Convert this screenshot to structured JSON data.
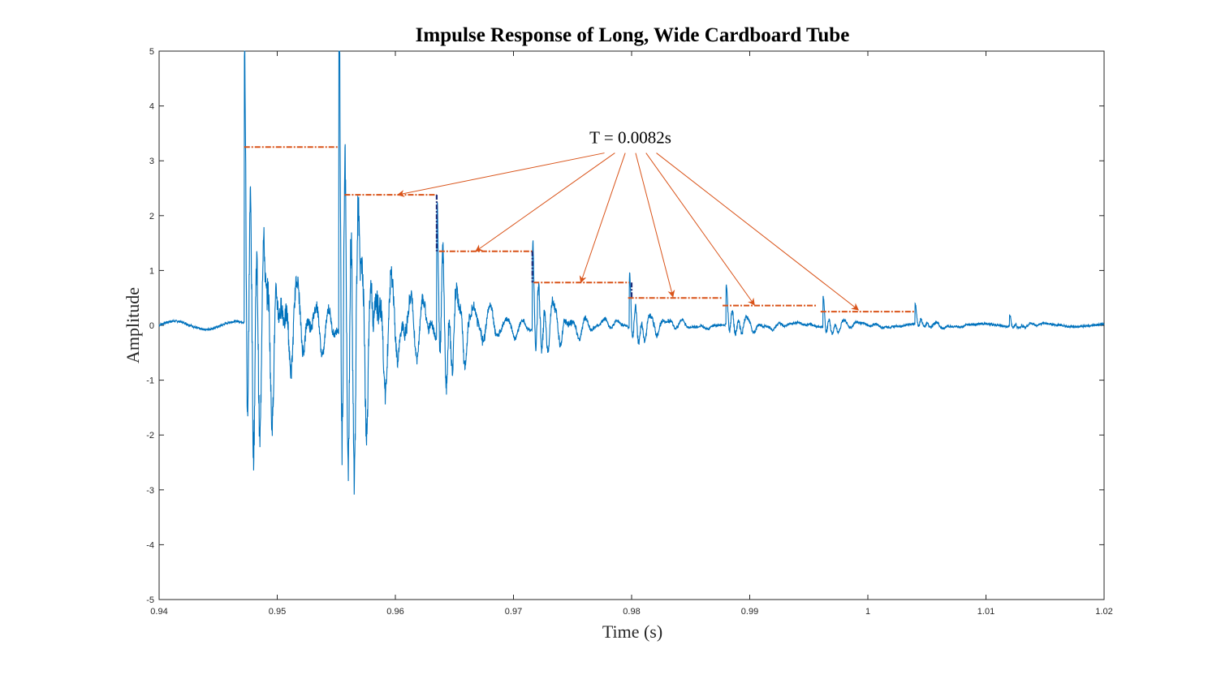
{
  "chart_data": {
    "type": "line",
    "title": "Impulse Response of Long, Wide Cardboard Tube",
    "xlabel": "Time (s)",
    "ylabel": "Amplitude",
    "xlim": [
      0.94,
      1.02
    ],
    "ylim": [
      -5,
      5
    ],
    "x_ticks": [
      0.94,
      0.95,
      0.96,
      0.97,
      0.98,
      0.99,
      1,
      1.01,
      1.02
    ],
    "x_tick_labels": [
      "0.94",
      "0.95",
      "0.96",
      "0.97",
      "0.98",
      "0.99",
      "1",
      "1.01",
      "1.02"
    ],
    "y_ticks": [
      -5,
      -4,
      -3,
      -2,
      -1,
      0,
      1,
      2,
      3,
      4,
      5
    ],
    "y_tick_labels": [
      "-5",
      "-4",
      "-3",
      "-2",
      "-1",
      "0",
      "1",
      "2",
      "3",
      "4",
      "5"
    ],
    "grid": false,
    "colors": {
      "signal": "#0072bd",
      "period_line": "#d95319",
      "step_line": "#1f2e7a",
      "annotation_arrow": "#d95319"
    },
    "events": [
      {
        "t": 0.9472,
        "amp": 4.0,
        "decay": 0.9
      },
      {
        "t": 0.9552,
        "amp": 5.0,
        "decay": 0.9
      },
      {
        "t": 0.9635,
        "amp": 1.9,
        "decay": 1.1
      },
      {
        "t": 0.9716,
        "amp": 1.3,
        "decay": 1.3
      },
      {
        "t": 0.9798,
        "amp": 0.8,
        "decay": 1.5
      },
      {
        "t": 0.988,
        "amp": 0.6,
        "decay": 1.7
      },
      {
        "t": 0.9962,
        "amp": 0.45,
        "decay": 2.0
      },
      {
        "t": 1.004,
        "amp": 0.3,
        "decay": 2.4
      },
      {
        "t": 1.012,
        "amp": 0.18,
        "decay": 2.8
      }
    ],
    "period_segments": [
      {
        "x0": 0.9472,
        "x1": 0.9552,
        "y": 3.25
      },
      {
        "x0": 0.9557,
        "x1": 0.9635,
        "y": 2.38
      },
      {
        "x0": 0.9637,
        "x1": 0.9717,
        "y": 1.35
      },
      {
        "x0": 0.9717,
        "x1": 0.9798,
        "y": 0.78
      },
      {
        "x0": 0.9797,
        "x1": 0.9877,
        "y": 0.5
      },
      {
        "x0": 0.9877,
        "x1": 0.9957,
        "y": 0.36
      },
      {
        "x0": 0.996,
        "x1": 1.004,
        "y": 0.25
      }
    ],
    "step_segments": [
      {
        "x": 0.9635,
        "y0": 2.38,
        "y1": 1.35
      },
      {
        "x": 0.9716,
        "y0": 1.35,
        "y1": 0.78
      },
      {
        "x": 0.98,
        "y0": 0.78,
        "y1": 0.5
      }
    ],
    "annotation": {
      "text": "T = 0.0082s",
      "x": 0.9799,
      "y": 3.32,
      "arrow_targets": [
        {
          "x": 0.9602,
          "y": 2.38
        },
        {
          "x": 0.9668,
          "y": 1.35
        },
        {
          "x": 0.9757,
          "y": 0.78
        },
        {
          "x": 0.9835,
          "y": 0.52
        },
        {
          "x": 0.9904,
          "y": 0.37
        },
        {
          "x": 0.9992,
          "y": 0.28
        }
      ]
    }
  }
}
